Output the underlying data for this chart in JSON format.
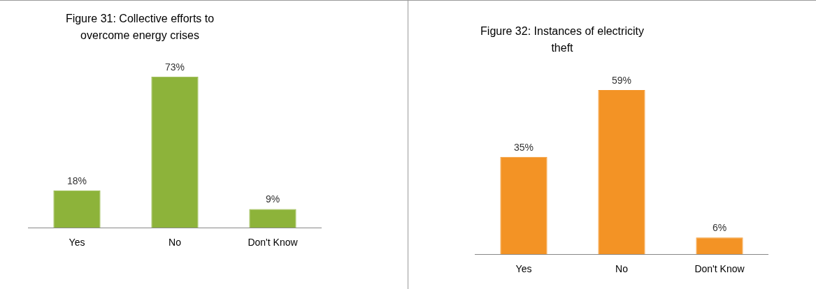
{
  "chart_data": [
    {
      "type": "bar",
      "title": "Figure 31: Collective efforts to overcome  energy crises",
      "categories": [
        "Yes",
        "No",
        "Don't Know"
      ],
      "values": [
        18,
        73,
        9
      ],
      "color": "#8db33a",
      "value_labels": [
        "18%",
        "73%",
        "9%"
      ]
    },
    {
      "type": "bar",
      "title": "Figure 32: Instances of electricity theft",
      "categories": [
        "Yes",
        "No",
        "Don't Know"
      ],
      "values": [
        35,
        59,
        6
      ],
      "color": "#f39325",
      "value_labels": [
        "35%",
        "59%",
        "6%"
      ]
    }
  ]
}
